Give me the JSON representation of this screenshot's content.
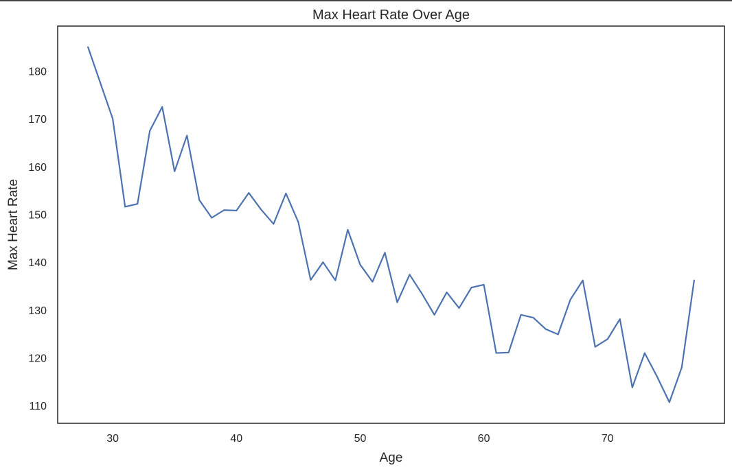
{
  "chart_data": {
    "type": "line",
    "title": "Max Heart Rate Over Age",
    "xlabel": "Age",
    "ylabel": "Max Heart Rate",
    "xlim": [
      25.55,
      79.45
    ],
    "ylim": [
      106.3,
      189.4
    ],
    "xticks": [
      30,
      40,
      50,
      60,
      70
    ],
    "yticks": [
      110,
      120,
      130,
      140,
      150,
      160,
      170,
      180
    ],
    "grid": false,
    "legend": "none",
    "series": [
      {
        "name": "Max Heart Rate",
        "color": "#4c72b0",
        "x": [
          28,
          29,
          30,
          31,
          32,
          33,
          34,
          35,
          36,
          37,
          38,
          39,
          40,
          41,
          42,
          43,
          44,
          45,
          46,
          47,
          48,
          49,
          50,
          51,
          52,
          53,
          54,
          55,
          56,
          57,
          58,
          59,
          60,
          61,
          62,
          63,
          64,
          65,
          66,
          67,
          68,
          69,
          70,
          71,
          72,
          73,
          74,
          75,
          76,
          77
        ],
        "y": [
          185,
          177.5,
          170,
          151.6,
          152.2,
          167.5,
          172.5,
          159,
          166.5,
          153,
          149.3,
          150.9,
          150.8,
          154.5,
          151,
          148,
          154.4,
          148.4,
          136.3,
          140,
          136.2,
          146.8,
          139.5,
          135.9,
          142,
          131.6,
          137.4,
          133.4,
          129,
          133.7,
          130.4,
          134.7,
          135.3,
          121,
          121.1,
          129,
          128.4,
          126,
          124.9,
          132.2,
          136.2,
          122.3,
          123.9,
          128.1,
          113.8,
          121,
          116.1,
          110.7,
          118,
          136.2
        ]
      }
    ]
  }
}
